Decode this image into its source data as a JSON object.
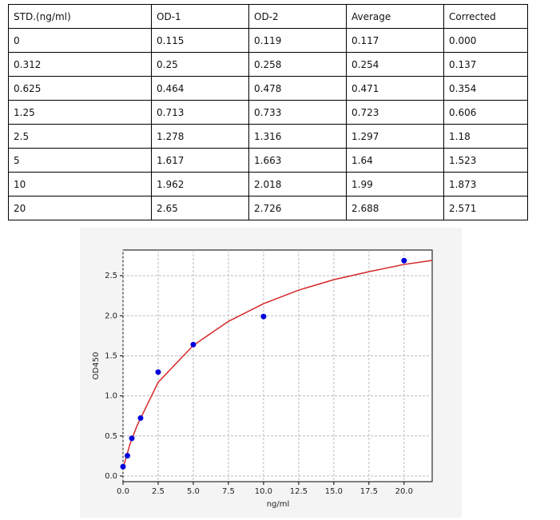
{
  "table": {
    "header": [
      "STD.(ng/ml)",
      "OD-1",
      "OD-2",
      "Average",
      "Corrected"
    ],
    "rows": [
      [
        "0",
        "0.115",
        "0.119",
        "0.117",
        "0.000"
      ],
      [
        "0.312",
        "0.25",
        "0.258",
        "0.254",
        "0.137"
      ],
      [
        "0.625",
        "0.464",
        "0.478",
        "0.471",
        "0.354"
      ],
      [
        "1.25",
        "0.713",
        "0.733",
        "0.723",
        "0.606"
      ],
      [
        "2.5",
        "1.278",
        "1.316",
        "1.297",
        "1.18"
      ],
      [
        "5",
        "1.617",
        "1.663",
        "1.64",
        "1.523"
      ],
      [
        "10",
        "1.962",
        "2.018",
        "1.99",
        "1.873"
      ],
      [
        "20",
        "2.65",
        "2.726",
        "2.688",
        "2.571"
      ]
    ]
  },
  "chart_data": {
    "type": "scatter",
    "xlabel": "ng/ml",
    "ylabel": "OD450",
    "points": {
      "color": "#0000dd",
      "x": [
        0,
        0.312,
        0.625,
        1.25,
        2.5,
        5,
        10,
        20
      ],
      "values": [
        0.117,
        0.254,
        0.471,
        0.723,
        1.297,
        1.64,
        1.99,
        2.688
      ]
    },
    "curve": {
      "color": "#d62728",
      "x": [
        0,
        0.5,
        1,
        2.5,
        5,
        7.5,
        10,
        12.5,
        15,
        17.5,
        20,
        22
      ],
      "values": [
        0.1,
        0.4,
        0.63,
        1.17,
        1.63,
        1.93,
        2.15,
        2.32,
        2.45,
        2.55,
        2.64,
        2.69
      ]
    },
    "xlim": [
      0,
      22
    ],
    "ylim": [
      -0.07,
      2.82
    ],
    "xticks": [
      {
        "value": 0,
        "label": "0.0"
      },
      2.5,
      {
        "value": 5,
        "label": "5.0"
      },
      7.5,
      {
        "value": 10,
        "label": "10.0"
      },
      12.5,
      {
        "value": 15,
        "label": "15.0"
      },
      17.5,
      {
        "value": 20,
        "label": "20.0"
      }
    ],
    "yticks": [
      {
        "value": 0,
        "label": "0.0"
      },
      0.5,
      {
        "value": 1,
        "label": "1.0"
      },
      1.5,
      {
        "value": 2,
        "label": "2.0"
      },
      2.5
    ],
    "grid": true
  }
}
